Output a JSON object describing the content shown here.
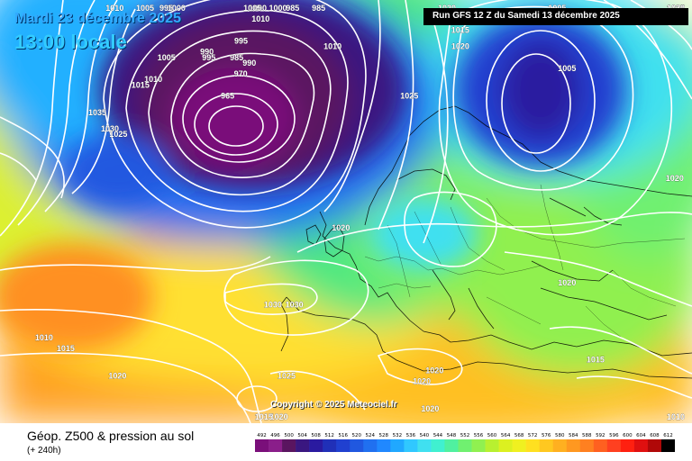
{
  "map_title": {
    "date": "Mardi 23 décembre 2025",
    "time": "13:00 locale"
  },
  "run_info": "Run GFS 12 Z du Samedi 13 décembre 2025",
  "copyright": "Copyright © 2025 Meteociel.fr",
  "legend": {
    "title": "Géop. Z500 & pression au sol",
    "subtitle": "(+ 240h)",
    "ticks": [
      "492",
      "496",
      "500",
      "504",
      "508",
      "512",
      "516",
      "520",
      "524",
      "528",
      "532",
      "536",
      "540",
      "544",
      "548",
      "552",
      "556",
      "560",
      "564",
      "568",
      "572",
      "576",
      "580",
      "584",
      "588",
      "592",
      "596",
      "600",
      "604",
      "608",
      "612"
    ],
    "colors": [
      "#7a0f7a",
      "#8a1e8a",
      "#5a1560",
      "#3a1780",
      "#2a1aa0",
      "#2030b8",
      "#2040d0",
      "#2058e0",
      "#2070f0",
      "#2088ff",
      "#20a8ff",
      "#30c8ff",
      "#40e0f0",
      "#40f0d0",
      "#50f0a0",
      "#70f070",
      "#90f050",
      "#b8f030",
      "#dcf020",
      "#f0f020",
      "#ffe020",
      "#ffc820",
      "#ffb020",
      "#ff9820",
      "#ff8020",
      "#ff6020",
      "#ff4020",
      "#ff2010",
      "#e01010",
      "#b00808",
      "#000000"
    ]
  },
  "isobars": [
    {
      "label": "1005",
      "lat": 73.5,
      "lon": -55
    },
    {
      "label": "1010",
      "lat": 71.5,
      "lon": -62
    },
    {
      "label": "995",
      "lat": 69,
      "lon": -49
    },
    {
      "label": "1000",
      "lat": 67.5,
      "lon": -47
    },
    {
      "label": "1000",
      "lat": 71.5,
      "lon": -28
    },
    {
      "label": "985",
      "lat": 72,
      "lon": -13
    },
    {
      "label": "1005",
      "lat": 61,
      "lon": -49
    },
    {
      "label": "1010",
      "lat": 59,
      "lon": -52
    },
    {
      "label": "1015",
      "lat": 58.5,
      "lon": -55
    },
    {
      "label": "990",
      "lat": 61.5,
      "lon": -39
    },
    {
      "label": "995",
      "lat": 61,
      "lon": -38.5
    },
    {
      "label": "995",
      "lat": 62.5,
      "lon": -31
    },
    {
      "label": "985",
      "lat": 61,
      "lon": -32
    },
    {
      "label": "990",
      "lat": 60.5,
      "lon": -29
    },
    {
      "label": "970",
      "lat": 59.5,
      "lon": -31
    },
    {
      "label": "965",
      "lat": 57.5,
      "lon": -34
    },
    {
      "label": "1005",
      "lat": 66,
      "lon": -29
    },
    {
      "label": "1010",
      "lat": 64.5,
      "lon": -27
    },
    {
      "label": "1000",
      "lat": 67,
      "lon": -23
    },
    {
      "label": "985",
      "lat": 67,
      "lon": -19
    },
    {
      "label": "1010",
      "lat": 62,
      "lon": -10
    },
    {
      "label": "1025",
      "lat": 57.5,
      "lon": 8
    },
    {
      "label": "1020",
      "lat": 72,
      "lon": 17
    },
    {
      "label": "1015",
      "lat": 63.5,
      "lon": 20
    },
    {
      "label": "1020",
      "lat": 62,
      "lon": 20
    },
    {
      "label": "1005",
      "lat": 67.5,
      "lon": 43
    },
    {
      "label": "1010",
      "lat": 65,
      "lon": 53
    },
    {
      "label": "1005",
      "lat": 60,
      "lon": 45
    },
    {
      "label": "1035",
      "lat": 73.5,
      "lon": 80
    },
    {
      "label": "1030",
      "lat": 68,
      "lon": 78
    },
    {
      "label": "1025",
      "lat": 64.5,
      "lon": 73
    },
    {
      "label": "1035",
      "lat": 56,
      "lon": -65
    },
    {
      "label": "1030",
      "lat": 54.5,
      "lon": -62
    },
    {
      "label": "1025",
      "lat": 54,
      "lon": -60
    },
    {
      "label": "1020",
      "lat": 50,
      "lon": 70
    },
    {
      "label": "1020",
      "lat": 45.5,
      "lon": -8
    },
    {
      "label": "1030",
      "lat": 38.5,
      "lon": -24
    },
    {
      "label": "1030",
      "lat": 38.5,
      "lon": -19
    },
    {
      "label": "1010",
      "lat": 35.5,
      "lon": -78
    },
    {
      "label": "1015",
      "lat": 34.5,
      "lon": -73
    },
    {
      "label": "1020",
      "lat": 32,
      "lon": -61
    },
    {
      "label": "1025",
      "lat": 32,
      "lon": -21
    },
    {
      "label": "1020",
      "lat": 27.5,
      "lon": -23
    },
    {
      "label": "1015",
      "lat": 21,
      "lon": -27
    },
    {
      "label": "1020",
      "lat": 40.5,
      "lon": 45
    },
    {
      "label": "1020",
      "lat": 32.5,
      "lon": 14
    },
    {
      "label": "1020",
      "lat": 31.5,
      "lon": 11
    },
    {
      "label": "1020",
      "lat": 29,
      "lon": 13
    },
    {
      "label": "1015",
      "lat": 33.5,
      "lon": 52
    },
    {
      "label": "1010",
      "lat": 27,
      "lon": 80
    }
  ]
}
